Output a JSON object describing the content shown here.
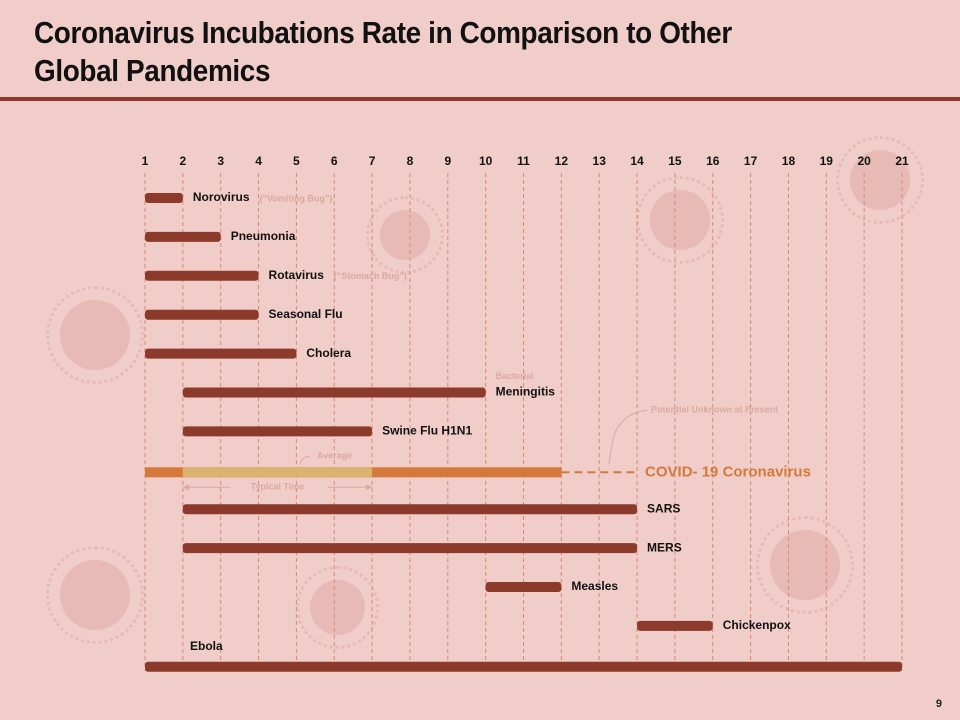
{
  "page": {
    "title": "Coronavirus Incubations Rate in Comparison to Other\nGlobal Pandemics",
    "page_number": "9"
  },
  "colors": {
    "background": "#f0cdc8",
    "rule": "#8c3a2c",
    "bar": "#8c3a2c",
    "covid_bar": "#d4793a",
    "average_bar": "#dcb36e",
    "covid_label": "#d4793a",
    "grid": "#d98a6e",
    "note": "#dba8a1"
  },
  "chart_data": {
    "type": "bar",
    "orientation": "horizontal-range",
    "title": "Coronavirus Incubations Rate in Comparison to Other Global Pandemics",
    "xlabel": "",
    "ylabel": "",
    "xlim": [
      1,
      21
    ],
    "x_ticks": [
      "1",
      "2",
      "3",
      "4",
      "5",
      "6",
      "7",
      "8",
      "9",
      "10",
      "11",
      "12",
      "13",
      "14",
      "15",
      "16",
      "17",
      "18",
      "19",
      "20",
      "21"
    ],
    "grid": "vertical dashed",
    "series": [
      {
        "name": "Norovirus",
        "start": 1,
        "end": 2,
        "note": "(“Vomiting Bug”)"
      },
      {
        "name": "Pneumonia",
        "start": 1,
        "end": 3
      },
      {
        "name": "Rotavirus",
        "start": 1,
        "end": 4,
        "note": "(“Stomach Bug”)"
      },
      {
        "name": "Seasonal Flu",
        "start": 1,
        "end": 4
      },
      {
        "name": "Cholera",
        "start": 1,
        "end": 5
      },
      {
        "name": "Meningitis",
        "start": 2,
        "end": 10,
        "prefix_note": "Bacterial"
      },
      {
        "name": "Swine Flu H1N1",
        "start": 2,
        "end": 7
      },
      {
        "name": "COVID- 19 Coronavirus",
        "start": 1,
        "end": 12,
        "extended_to": 14,
        "highlight": true,
        "average": {
          "start": 2,
          "end": 7,
          "label": "Average"
        },
        "typical_label": "Typical Time",
        "extension_note": "Potential Unknown at Present"
      },
      {
        "name": "SARS",
        "start": 2,
        "end": 14
      },
      {
        "name": "MERS",
        "start": 2,
        "end": 14
      },
      {
        "name": "Measles",
        "start": 10,
        "end": 12
      },
      {
        "name": "Chickenpox",
        "start": 14,
        "end": 16
      },
      {
        "name": "Ebola",
        "start": 1,
        "end": 21,
        "label_above": true
      }
    ]
  }
}
